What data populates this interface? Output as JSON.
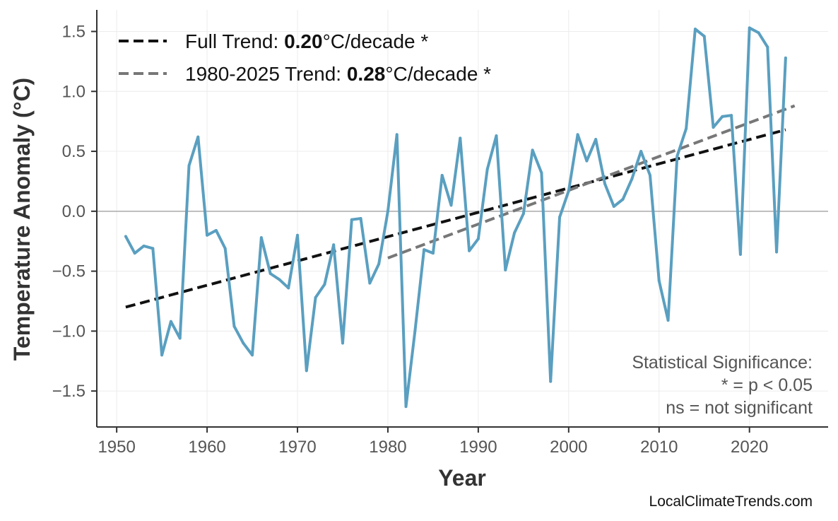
{
  "chart_data": {
    "type": "line",
    "xlabel": "Year",
    "ylabel": "Temperature Anomaly (°C)",
    "xlim": [
      1947.8,
      2028.7
    ],
    "ylim": [
      -1.8,
      1.68
    ],
    "xticks": [
      1950,
      1960,
      1970,
      1980,
      1990,
      2000,
      2010,
      2020
    ],
    "yticks": [
      -1.5,
      -1.0,
      -0.5,
      0.0,
      0.5,
      1.0,
      1.5
    ],
    "ytick_labels": [
      "−1.5",
      "−1.0",
      "−0.5",
      "0.0",
      "0.5",
      "1.0",
      "1.5"
    ],
    "grid": true,
    "legend_placement": "top-left",
    "colors": {
      "series": "#5a9fc0",
      "full_trend": "#111111",
      "recent_trend": "#777777",
      "zero_line": "#aaaaaa"
    },
    "x": [
      1951,
      1952,
      1953,
      1954,
      1955,
      1956,
      1957,
      1958,
      1959,
      1960,
      1961,
      1962,
      1963,
      1964,
      1965,
      1966,
      1967,
      1968,
      1969,
      1970,
      1971,
      1972,
      1973,
      1974,
      1975,
      1976,
      1977,
      1978,
      1979,
      1980,
      1981,
      1982,
      1983,
      1984,
      1985,
      1986,
      1987,
      1988,
      1989,
      1990,
      1991,
      1992,
      1993,
      1994,
      1995,
      1996,
      1997,
      1998,
      1999,
      2000,
      2001,
      2002,
      2003,
      2004,
      2005,
      2006,
      2007,
      2008,
      2009,
      2010,
      2011,
      2012,
      2013,
      2014,
      2015,
      2016,
      2017,
      2018,
      2019,
      2020,
      2021,
      2022,
      2023,
      2024
    ],
    "values": [
      -0.21,
      -0.35,
      -0.29,
      -0.31,
      -1.2,
      -0.92,
      -1.06,
      0.38,
      0.62,
      -0.2,
      -0.16,
      -0.31,
      -0.96,
      -1.1,
      -1.2,
      -0.22,
      -0.52,
      -0.57,
      -0.64,
      -0.2,
      -1.33,
      -0.72,
      -0.61,
      -0.28,
      -1.1,
      -0.07,
      -0.06,
      -0.6,
      -0.44,
      0.0,
      0.64,
      -1.63,
      -1.0,
      -0.32,
      -0.35,
      0.3,
      0.05,
      0.61,
      -0.33,
      -0.23,
      0.35,
      0.63,
      -0.49,
      -0.18,
      -0.02,
      0.51,
      0.32,
      -1.42,
      -0.05,
      0.17,
      0.64,
      0.42,
      0.6,
      0.23,
      0.04,
      0.1,
      0.27,
      0.5,
      0.3,
      -0.58,
      -0.91,
      0.46,
      0.69,
      1.52,
      1.46,
      0.7,
      0.79,
      0.8,
      -0.36,
      1.53,
      1.49,
      1.37,
      -0.34,
      1.28
    ],
    "trends": [
      {
        "label_prefix": "Full Trend: ",
        "rate": "0.20",
        "label_suffix": "°C/decade *",
        "x": [
          1951,
          2024
        ],
        "y": [
          -0.8,
          0.68
        ]
      },
      {
        "label_prefix": "1980-2025 Trend: ",
        "rate": "0.28",
        "label_suffix": "°C/decade *",
        "x": [
          1980,
          2025
        ],
        "y": [
          -0.39,
          0.88
        ]
      }
    ],
    "annotation": [
      "Statistical Significance:",
      "* = p < 0.05",
      "ns = not significant"
    ],
    "watermark": "LocalClimateTrends.com"
  }
}
